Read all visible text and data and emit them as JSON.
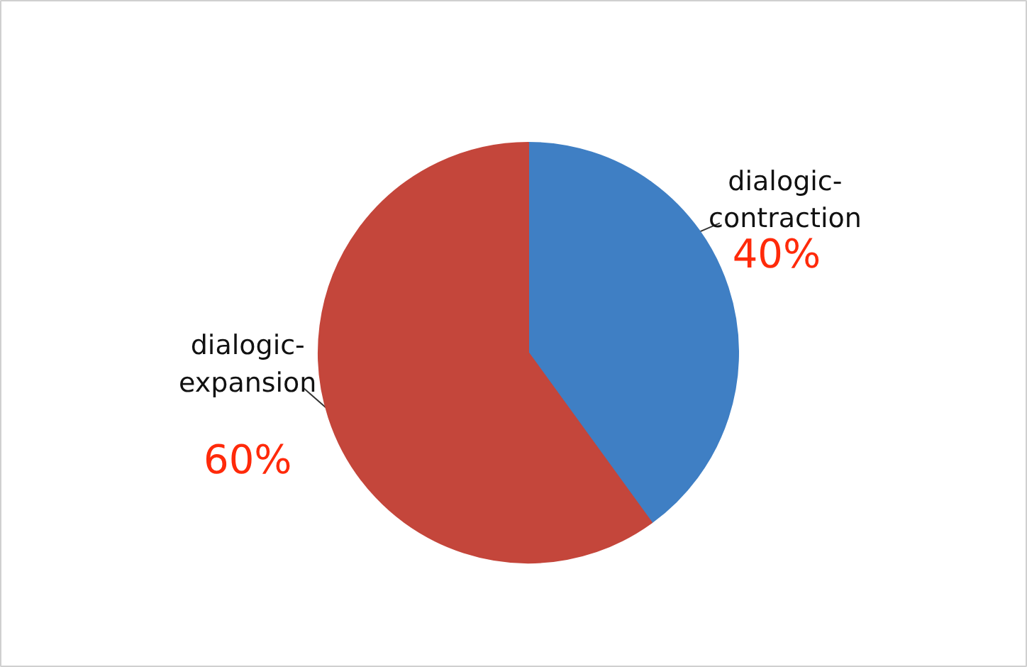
{
  "chart_data": {
    "type": "pie",
    "categories": [
      "dialogic-contraction",
      "dialogic-expansion"
    ],
    "values": [
      40,
      60
    ],
    "colors": [
      "#3f7fc4",
      "#c4463b"
    ],
    "value_labels": [
      "40%",
      "60%"
    ]
  }
}
